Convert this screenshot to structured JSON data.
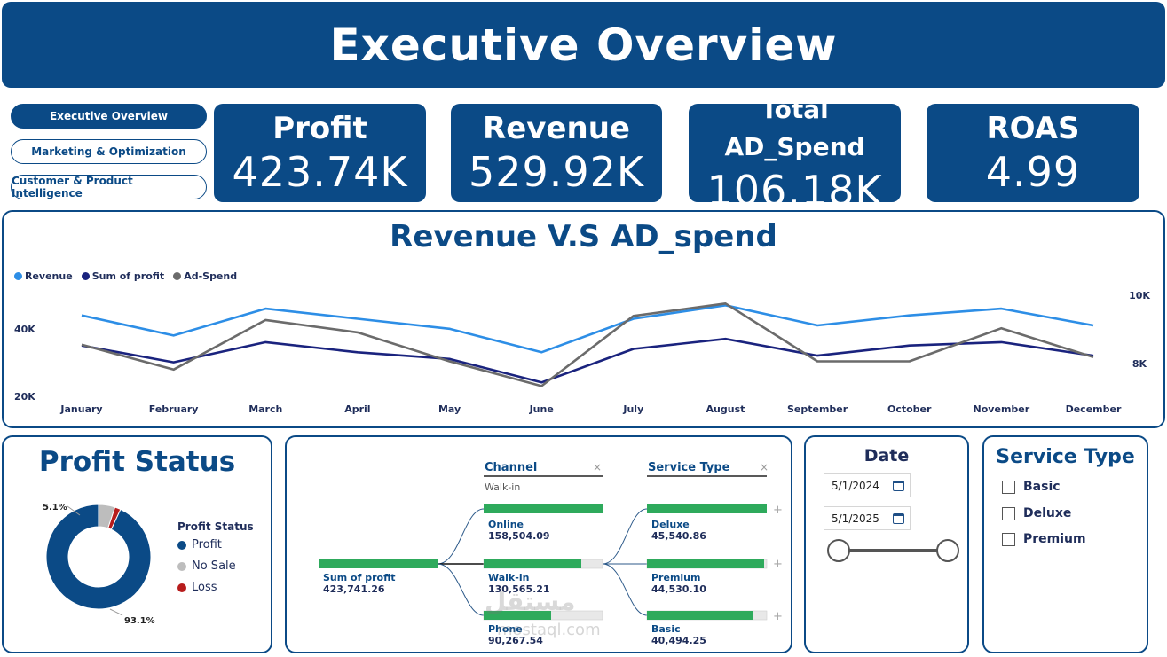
{
  "header": {
    "title": "Executive Overview"
  },
  "nav": [
    {
      "label": "Executive Overview",
      "active": true
    },
    {
      "label": "Marketing & Optimization",
      "active": false
    },
    {
      "label": "Customer & Product Intelligence",
      "active": false
    }
  ],
  "kpis": [
    {
      "label": "Profit",
      "value": "423.74K"
    },
    {
      "label": "Revenue",
      "value": "529.92K"
    },
    {
      "label": "Total AD_Spend",
      "value": "106.18K"
    },
    {
      "label": "ROAS",
      "value": "4.99"
    }
  ],
  "line_chart": {
    "title": "Revenue V.S AD_spend",
    "legend": [
      "Revenue",
      "Sum of profit",
      "Ad-Spend"
    ],
    "left_ticks": [
      "40K",
      "20K"
    ],
    "right_ticks": [
      "10K",
      "8K"
    ]
  },
  "profit_status": {
    "title": "Profit Status",
    "legend_title": "Profit Status",
    "labels": [
      "Profit",
      "No Sale",
      "Loss"
    ],
    "pct_labels": [
      "5.1%",
      "93.1%"
    ]
  },
  "decomp_tree": {
    "channel_header": "Channel",
    "channel_sub": "Walk-in",
    "service_header": "Service Type",
    "root": {
      "label": "Sum of profit",
      "value": "423,741.26"
    },
    "channels": [
      {
        "label": "Online",
        "value": "158,504.09"
      },
      {
        "label": "Walk-in",
        "value": "130,565.21"
      },
      {
        "label": "Phone",
        "value": "90,267.54"
      }
    ],
    "services": [
      {
        "label": "Deluxe",
        "value": "45,540.86"
      },
      {
        "label": "Premium",
        "value": "44,530.10"
      },
      {
        "label": "Basic",
        "value": "40,494.25"
      }
    ],
    "plus": "+",
    "close": "×"
  },
  "date_filter": {
    "title": "Date",
    "start": "5/1/2024",
    "end": "5/1/2025"
  },
  "service_filter": {
    "title": "Service Type",
    "options": [
      "Basic",
      "Deluxe",
      "Premium"
    ]
  },
  "watermark": {
    "text": "مستقل",
    "sub": "mostaql.com"
  },
  "colors": {
    "primary": "#0b4a86",
    "revenue": "#2d8ee6",
    "profit": "#1a237e",
    "adspend": "#6b6b6b",
    "bar": "#2eaa5c",
    "loss": "#b71c1c",
    "nosale": "#bdbdbd"
  },
  "chart_data": {
    "type": "line",
    "title": "Revenue V.S AD_spend",
    "categories": [
      "January",
      "February",
      "March",
      "April",
      "May",
      "June",
      "July",
      "August",
      "September",
      "October",
      "November",
      "December"
    ],
    "series": [
      {
        "name": "Revenue",
        "axis": "left",
        "values": [
          46000,
          40000,
          48000,
          45000,
          42000,
          35000,
          45000,
          49000,
          43000,
          46000,
          48000,
          43000
        ]
      },
      {
        "name": "Sum of profit",
        "axis": "left",
        "values": [
          37000,
          32000,
          38000,
          35000,
          33000,
          26000,
          36000,
          39000,
          34000,
          37000,
          38000,
          34000
        ]
      },
      {
        "name": "Ad-Spend",
        "axis": "right",
        "values": [
          9000,
          8400,
          9600,
          9300,
          8600,
          8000,
          9700,
          10000,
          8600,
          8600,
          9400,
          8700
        ]
      }
    ],
    "ylim_left": [
      20000,
      52000
    ],
    "ylim_right": [
      7600,
      10200
    ],
    "left_ticks": [
      40000,
      20000
    ],
    "right_ticks": [
      10000,
      8000
    ],
    "grid": false,
    "legend_position": "top-left"
  },
  "pie_data": {
    "type": "pie",
    "labels": [
      "Profit",
      "No Sale",
      "Loss"
    ],
    "values": [
      93.1,
      5.1,
      1.8
    ]
  }
}
